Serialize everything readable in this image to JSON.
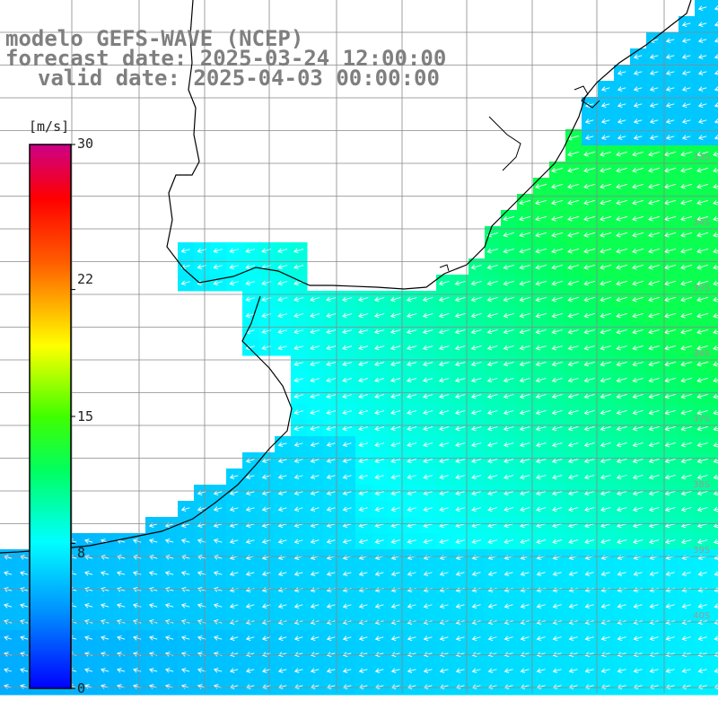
{
  "title": {
    "line1": "modelo GEFS-WAVE (NCEP)",
    "line2": "forecast date: 2025-03-24 12:00:00",
    "line3": "valid date: 2025-04-03 00:00:00"
  },
  "colorbar": {
    "unit": "[m/s]",
    "ticks": [
      {
        "label": "30",
        "value": 30
      },
      {
        "label": "22",
        "value": 22
      },
      {
        "label": "15",
        "value": 15
      },
      {
        "label": "8",
        "value": 8
      },
      {
        "label": "0",
        "value": 0
      }
    ],
    "colors": [
      "#0000ff",
      "#0080ff",
      "#00e0ff",
      "#00ff80",
      "#00ff00",
      "#80ff00",
      "#ffff00",
      "#ff8000",
      "#ff0000",
      "#cc0088"
    ]
  },
  "latitude_labels": [
    "33S",
    "34S",
    "35S",
    "36S",
    "37S",
    "38S",
    "39S",
    "40S"
  ],
  "chart_data": {
    "type": "heatmap",
    "variable": "wind speed with direction vectors",
    "unit": "m/s",
    "range": [
      0,
      30
    ],
    "regions": [
      {
        "area": "northeast offshore",
        "speed_approx": 11
      },
      {
        "area": "central shelf",
        "speed_approx": 9
      },
      {
        "area": "southwest coastal",
        "speed_approx": 5
      },
      {
        "area": "southern band",
        "speed_approx": 6
      }
    ],
    "vector_direction": "toward northwest"
  }
}
